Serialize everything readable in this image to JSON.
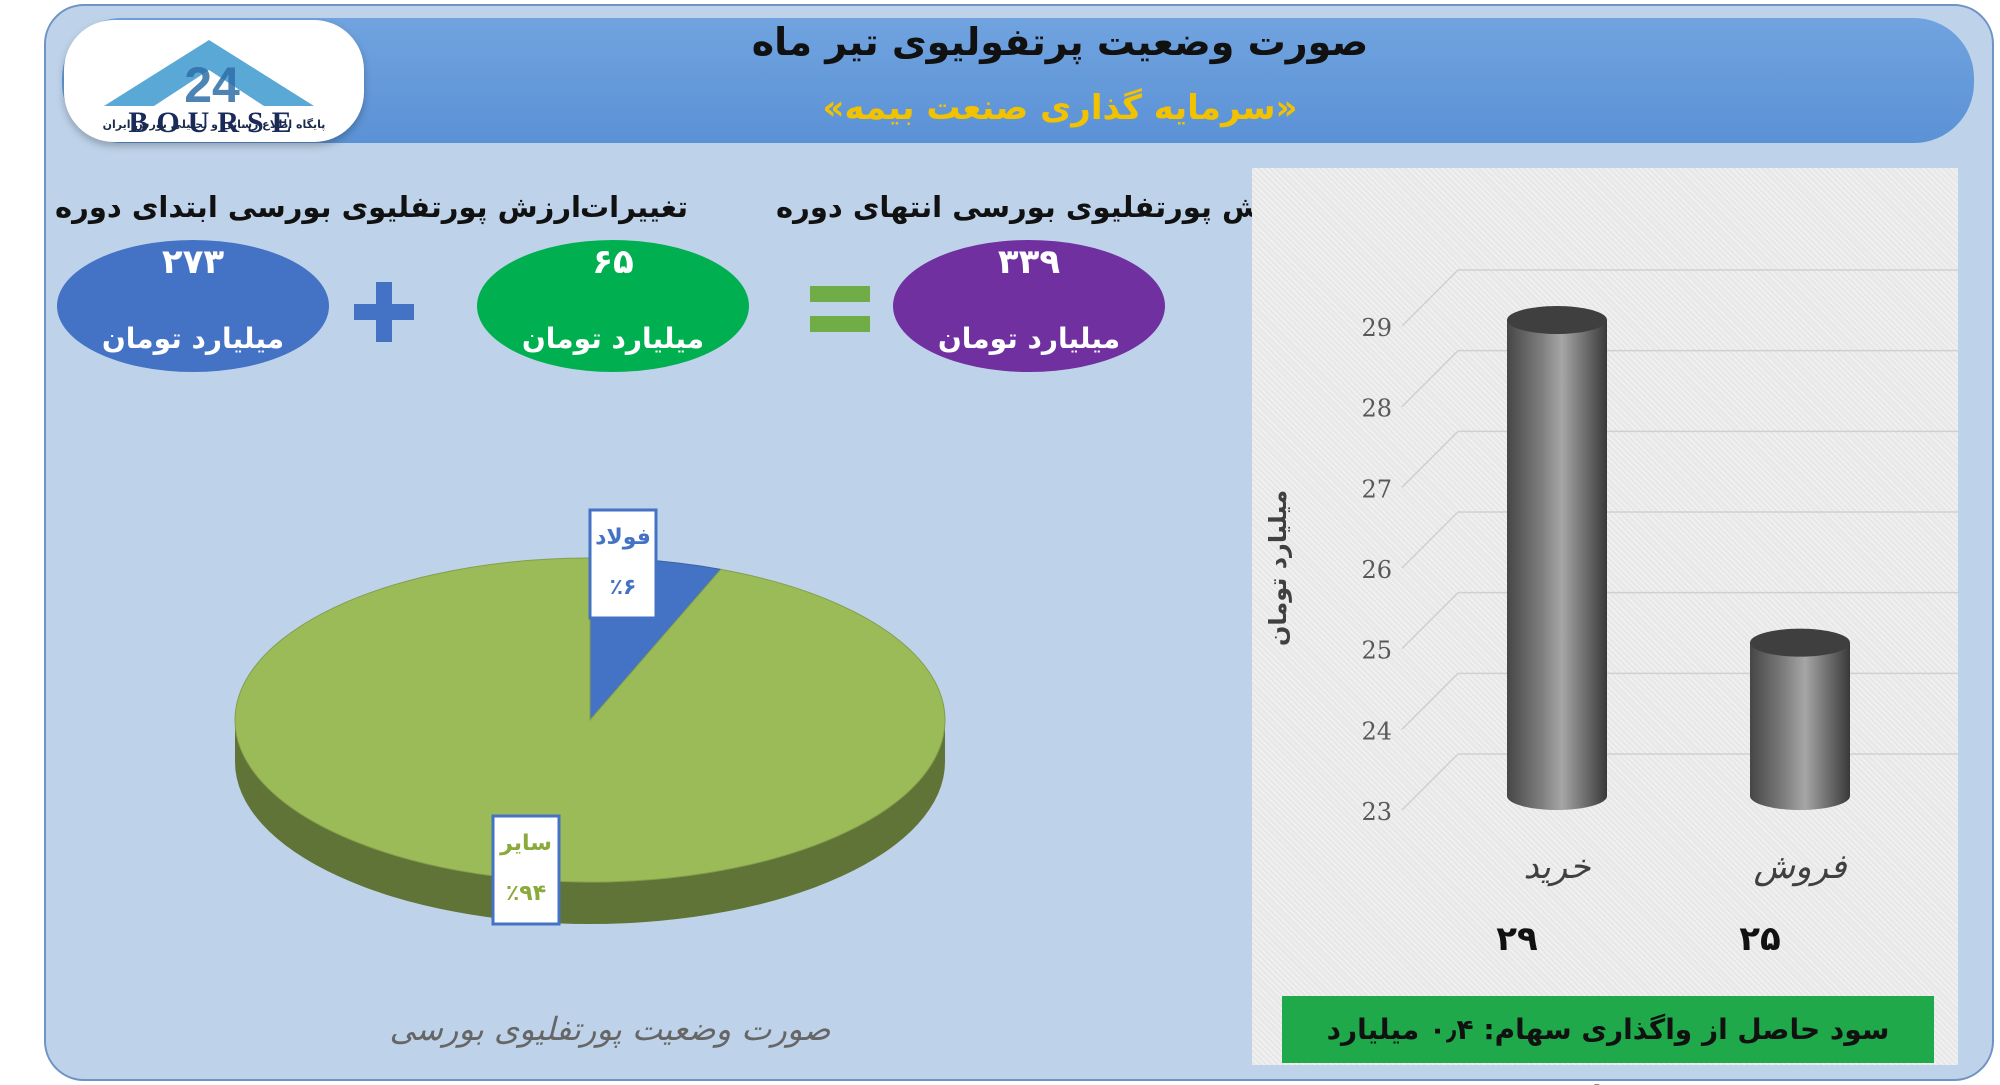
{
  "header": {
    "title": "صورت وضعیت پرتفولیوی تیر ماه",
    "subtitle": "«سرمایه گذاری صنعت بیمه»"
  },
  "logo": {
    "text": "BOURSE",
    "number": "24",
    "tagline": "پایگاه اطلاع رسانی و تحلیلی بورس ایران"
  },
  "summary": {
    "start": {
      "label": "ارزش پورتفلیوی بورسی ابتدای دوره",
      "value": "۲۷۳",
      "unit": "میلیارد تومان",
      "color": "#4472c4"
    },
    "change": {
      "label": "تغییرات",
      "value": "۶۵",
      "unit": "میلیارد تومان",
      "color": "#00b050"
    },
    "end": {
      "label": "ارزش پورتفلیوی بورسی انتهای دوره",
      "value": "۳۳۹",
      "unit": "میلیارد تومان",
      "color": "#7030a0"
    },
    "plus_symbol": "+",
    "equals_symbol": "=",
    "plus_color": "#4472c4",
    "equals_color": "#70ad47"
  },
  "pie_caption": "صورت وضعیت پورتفلیوی بورسی",
  "profit_note": "سود حاصل از واگذاری سهام: ۰٫۴ میلیارد تومان",
  "chart_data": [
    {
      "type": "pie",
      "title": "",
      "slices": [
        {
          "label": "فولاد",
          "value": 6,
          "display": "٪۶",
          "color": "#4472c4"
        },
        {
          "label": "سایر",
          "value": 94,
          "display": "٪۹۴",
          "color": "#9bbb59"
        }
      ]
    },
    {
      "type": "bar",
      "categories": [
        "خرید",
        "فروش"
      ],
      "values": [
        29,
        25
      ],
      "value_labels": [
        "۲۹",
        "۲۵"
      ],
      "ylabel": "میلیارد تومان",
      "xlabel": "",
      "ylim": [
        23,
        29
      ],
      "yticks": [
        23,
        24,
        25,
        26,
        27,
        28,
        29
      ],
      "grid": true,
      "bar_color": "#7f7f7f"
    }
  ]
}
